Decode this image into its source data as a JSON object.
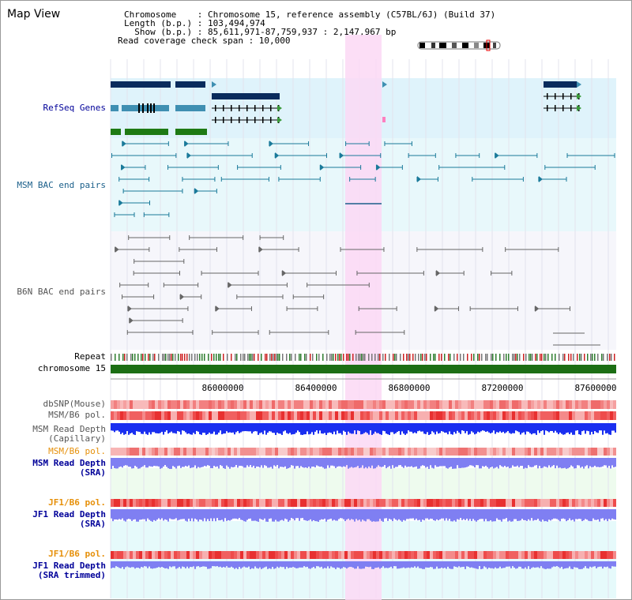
{
  "title": "Map View",
  "info": {
    "chromosome": "Chromosome    : Chromosome 15, reference assembly (C57BL/6J) (Build 37)",
    "length": "Length (b.p.) : 103,494,974",
    "show": "  Show (b.p.) : 85,611,971-87,759,937 : 2,147,967 bp",
    "coverage": "Read coverage check span : 10,000"
  },
  "tracks": {
    "refseq": "RefSeq Genes",
    "msm_bac": "MSM BAC end pairs",
    "b6n_bac": "B6N BAC end pairs",
    "repeat": "Repeat",
    "chromosome": "chromosome 15",
    "dbsnp": "dbSNP(Mouse)",
    "msm_b6_pol_1": "MSM/B6 pol.",
    "msm_depth_cap_1": "MSM Read Depth",
    "msm_depth_cap_2": "(Capillary)",
    "msm_b6_pol_2": "MSM/B6 pol.",
    "msm_depth_sra_1": "MSM Read Depth",
    "msm_depth_sra_2": "(SRA)",
    "jf1_b6_pol_1": "JF1/B6 pol.",
    "jf1_depth_sra_1": "JF1 Read Depth",
    "jf1_depth_sra_2": "(SRA)",
    "jf1_b6_pol_2": "JF1/B6 pol.",
    "jf1_depth_trim_1": "JF1 Read Depth",
    "jf1_depth_trim_2": "(SRA trimmed)"
  },
  "ruler": {
    "ticks": [
      "86000000",
      "86400000",
      "86800000",
      "87200000",
      "87600000"
    ]
  },
  "colors": {
    "refseq_bg": "#dff3fb",
    "msm_bac_bg": "#e8f8fb",
    "highlight": "#fbd8f4",
    "chromosome_bar": "#1c6e14",
    "gene_dark": "#0a2b5c",
    "gene_light": "#3f8fb2",
    "gene_green": "#1e7a14",
    "depth_blue": "#1a2ff0",
    "depth_lavender": "#7f7ff2",
    "label_blue": "#000099",
    "label_teal": "#1a5f8a",
    "label_orange": "#e6900a",
    "label_gray": "#555555"
  }
}
